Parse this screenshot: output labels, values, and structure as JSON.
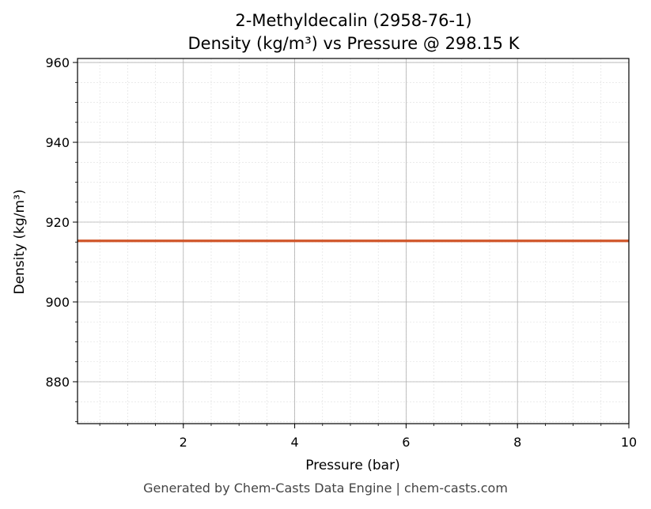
{
  "chart_data": {
    "type": "line",
    "title": "2-Methyldecalin (2958-76-1)",
    "subtitle": "Density (kg/m³) vs Pressure @ 298.15 K",
    "xlabel": "Pressure (bar)",
    "ylabel": "Density (kg/m³)",
    "xlim": [
      0.1,
      10
    ],
    "ylim": [
      869.5,
      961
    ],
    "x_ticks": [
      2,
      4,
      6,
      8,
      10
    ],
    "y_ticks": [
      880,
      900,
      920,
      940,
      960
    ],
    "x_minor_step": 0.5,
    "y_minor_step": 5,
    "grid": true,
    "series": [
      {
        "color": "#d0562a",
        "x": [
          0.1,
          1,
          2,
          3,
          4,
          5,
          6,
          7,
          8,
          9,
          10
        ],
        "y": [
          915.3,
          915.3,
          915.3,
          915.3,
          915.3,
          915.3,
          915.3,
          915.3,
          915.3,
          915.3,
          915.3
        ]
      }
    ]
  },
  "footer": "Generated by Chem-Casts Data Engine | chem-casts.com"
}
